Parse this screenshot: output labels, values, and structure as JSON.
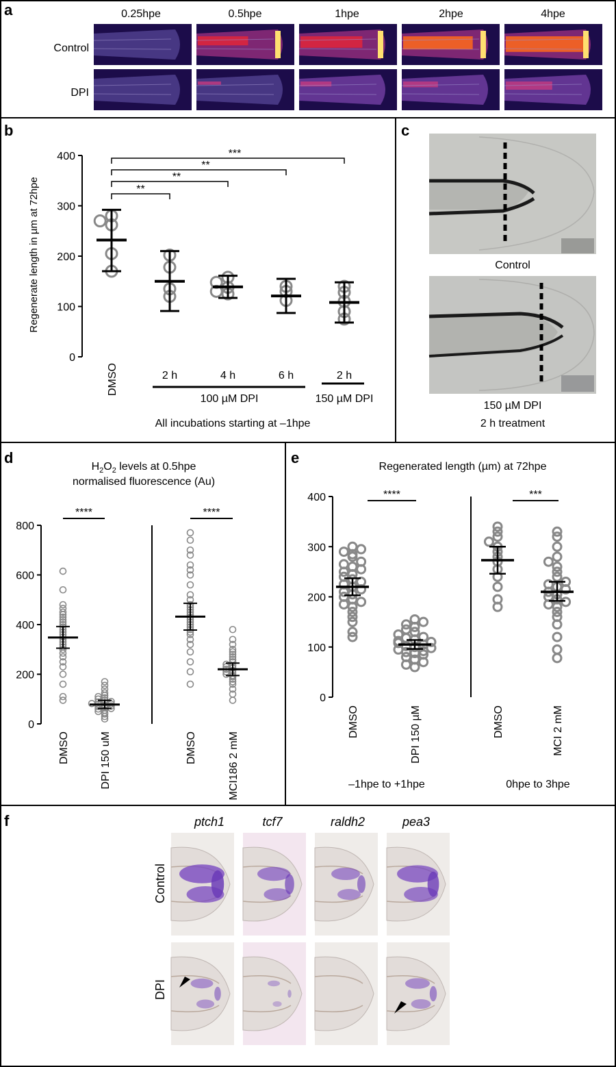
{
  "panels": {
    "a": {
      "letter": "a",
      "columns": [
        "0.25hpe",
        "0.5hpe",
        "1hpe",
        "2hpe",
        "4hpe"
      ],
      "rows": [
        "Control",
        "DPI"
      ],
      "intensity": {
        "Control": [
          0.08,
          0.55,
          0.7,
          0.8,
          0.95
        ],
        "DPI": [
          0.08,
          0.2,
          0.3,
          0.35,
          0.5
        ]
      }
    },
    "b": {
      "letter": "b",
      "ylabel": "Regenerate length in µm at 72hpe",
      "xlabel": "All incubations starting at –1hpe",
      "group_labels": [
        "100 µM DPI",
        "150 µM DPI"
      ],
      "significance": [
        {
          "from": "DMSO",
          "to": "100 µM DPI 2 h",
          "label": "**"
        },
        {
          "from": "DMSO",
          "to": "100 µM DPI 4 h",
          "label": "**"
        },
        {
          "from": "DMSO",
          "to": "100 µM DPI 6 h",
          "label": "**"
        },
        {
          "from": "DMSO",
          "to": "150 µM DPI 2 h",
          "label": "***"
        }
      ]
    },
    "c": {
      "letter": "c",
      "captions": [
        "Control",
        "150 µM DPI",
        "2 h treatment"
      ]
    },
    "d": {
      "letter": "d",
      "title_line1_pre": "H",
      "title_line1_sub1": "2",
      "title_line1_mid": "O",
      "title_line1_sub2": "2",
      "title_line1_post": " levels at 0.5hpe",
      "title_line2": "normalised fluorescence (Au)",
      "significance": [
        {
          "between": [
            "DMSO",
            "DPI 150 uM"
          ],
          "label": "****"
        },
        {
          "between": [
            "DMSO",
            "MCI186 2 mM"
          ],
          "label": "****"
        }
      ]
    },
    "e": {
      "letter": "e",
      "title": "Regenerated length (µm) at 72hpe",
      "group_labels": [
        "–1hpe to +1hpe",
        "0hpe to 3hpe"
      ],
      "significance": [
        {
          "between": [
            "DMSO",
            "DPI 150 µM"
          ],
          "label": "****"
        },
        {
          "between": [
            "DMSO",
            "MCI 2 mM"
          ],
          "label": "***"
        }
      ]
    },
    "f": {
      "letter": "f",
      "genes": [
        "ptch1",
        "tcf7",
        "raldh2",
        "pea3"
      ],
      "rows": [
        "Control",
        "DPI"
      ]
    }
  },
  "chart_data": [
    {
      "id": "b",
      "type": "scatter",
      "categories": [
        "DMSO",
        "2 h",
        "4 h",
        "6 h",
        "2 h"
      ],
      "ylabel": "Regenerate length in µm at 72hpe",
      "xlabel": "All incubations starting at –1hpe",
      "ylim": [
        0,
        400
      ],
      "yticks": [
        0,
        100,
        200,
        300,
        400
      ],
      "series": [
        {
          "category": "DMSO",
          "points": [
            170,
            205,
            262,
            270,
            280
          ],
          "mean": 232,
          "sd_low": 170,
          "sd_high": 292
        },
        {
          "category": "2 h",
          "points": [
            120,
            135,
            178,
            202
          ],
          "mean": 150,
          "sd_low": 91,
          "sd_high": 210
        },
        {
          "category": "4 h",
          "points": [
            125,
            130,
            138,
            148,
            158
          ],
          "mean": 139,
          "sd_low": 117,
          "sd_high": 161
        },
        {
          "category": "6 h",
          "points": [
            112,
            130,
            140
          ],
          "mean": 121,
          "sd_low": 87,
          "sd_high": 155
        },
        {
          "category": "2 h",
          "points": [
            75,
            90,
            110,
            128,
            140
          ],
          "mean": 108,
          "sd_low": 68,
          "sd_high": 148
        }
      ]
    },
    {
      "id": "d",
      "type": "scatter",
      "categories": [
        "DMSO",
        "DPI 150 uM",
        "DMSO",
        "MCI186 2 mM"
      ],
      "ylim": [
        0,
        800
      ],
      "yticks": [
        0,
        200,
        400,
        600,
        800
      ],
      "series": [
        {
          "category": "DMSO",
          "points": [
            95,
            110,
            160,
            200,
            230,
            250,
            270,
            285,
            300,
            310,
            320,
            330,
            340,
            350,
            360,
            370,
            380,
            390,
            400,
            410,
            420,
            430,
            440,
            450,
            465,
            480,
            540,
            615
          ],
          "mean": 348,
          "ci_low": 305,
          "ci_high": 392
        },
        {
          "category": "DPI 150 uM",
          "points": [
            20,
            30,
            40,
            45,
            50,
            55,
            60,
            62,
            65,
            70,
            72,
            75,
            78,
            80,
            82,
            85,
            88,
            90,
            95,
            100,
            105,
            110,
            115,
            125,
            140,
            155,
            170
          ],
          "mean": 78,
          "ci_low": 62,
          "ci_high": 95
        },
        {
          "category": "DMSO",
          "points": [
            160,
            210,
            250,
            290,
            320,
            340,
            360,
            370,
            380,
            390,
            400,
            410,
            420,
            430,
            440,
            450,
            460,
            470,
            480,
            500,
            520,
            560,
            600,
            620,
            640,
            680,
            700,
            740,
            770
          ],
          "mean": 432,
          "ci_low": 378,
          "ci_high": 486
        },
        {
          "category": "MCI186 2 mM",
          "points": [
            95,
            120,
            140,
            160,
            170,
            180,
            190,
            195,
            200,
            205,
            210,
            215,
            220,
            225,
            230,
            235,
            240,
            250,
            260,
            270,
            280,
            290,
            300,
            320,
            340,
            380
          ],
          "mean": 220,
          "ci_low": 195,
          "ci_high": 245
        }
      ]
    },
    {
      "id": "e",
      "type": "scatter",
      "title": "Regenerated length (µm) at 72hpe",
      "categories": [
        "DMSO",
        "DPI 150 µM",
        "DMSO",
        "MCI 2 mM"
      ],
      "ylim": [
        0,
        400
      ],
      "yticks": [
        0,
        100,
        200,
        300,
        400
      ],
      "series": [
        {
          "category": "DMSO",
          "points": [
            120,
            130,
            150,
            160,
            170,
            180,
            185,
            190,
            195,
            200,
            205,
            210,
            215,
            220,
            225,
            230,
            235,
            240,
            245,
            250,
            255,
            260,
            265,
            270,
            280,
            285,
            290,
            295,
            300
          ],
          "mean": 220,
          "ci_low": 203,
          "ci_high": 237
        },
        {
          "category": "DPI 150 µM",
          "points": [
            60,
            65,
            70,
            75,
            80,
            85,
            88,
            90,
            92,
            95,
            98,
            100,
            102,
            105,
            108,
            110,
            112,
            115,
            118,
            120,
            125,
            130,
            135,
            140,
            145,
            150,
            155
          ],
          "mean": 105,
          "ci_low": 96,
          "ci_high": 114
        },
        {
          "category": "DMSO",
          "points": [
            180,
            195,
            220,
            240,
            255,
            270,
            280,
            290,
            300,
            310,
            320,
            330,
            340
          ],
          "mean": 273,
          "ci_low": 246,
          "ci_high": 300
        },
        {
          "category": "MCI 2 mM",
          "points": [
            78,
            95,
            120,
            145,
            160,
            170,
            180,
            185,
            190,
            195,
            200,
            205,
            210,
            215,
            220,
            225,
            230,
            240,
            250,
            260,
            270,
            280,
            300,
            320,
            330
          ],
          "mean": 210,
          "ci_low": 192,
          "ci_high": 230
        }
      ]
    }
  ]
}
